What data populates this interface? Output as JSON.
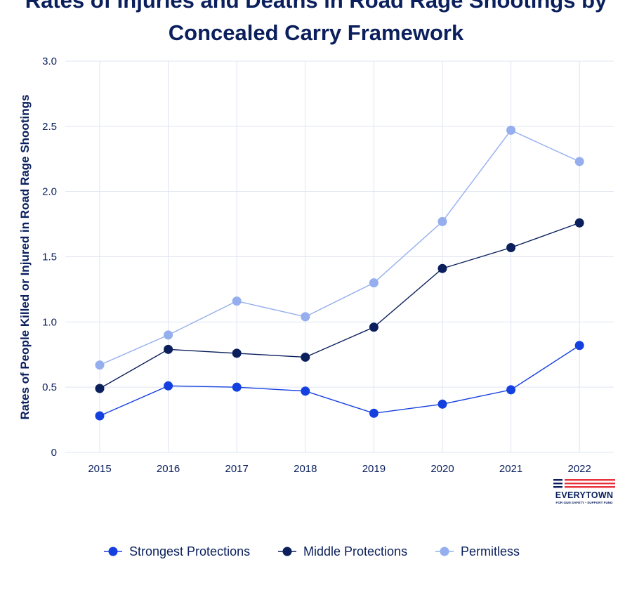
{
  "chart_data": {
    "type": "line",
    "title": "Rates of Injuries and Deaths in Road Rage Shootings by Concealed Carry Framework",
    "xlabel": "",
    "ylabel": "Rates of People Killed or Injured in Road Rage Shootings",
    "categories": [
      "2015",
      "2016",
      "2017",
      "2018",
      "2019",
      "2020",
      "2021",
      "2022"
    ],
    "ylim": [
      0,
      3.0
    ],
    "yticks": [
      0,
      0.5,
      1.0,
      1.5,
      2.0,
      2.5,
      3.0
    ],
    "ytick_labels": [
      "0",
      "0.5",
      "1.0",
      "1.5",
      "2.0",
      "2.5",
      "3.0"
    ],
    "grid": true,
    "legend_position": "bottom-center",
    "series": [
      {
        "name": "Strongest Protections",
        "color": "#1540e0",
        "values": [
          0.28,
          0.51,
          0.5,
          0.47,
          0.3,
          0.37,
          0.48,
          0.82
        ]
      },
      {
        "name": "Middle Protections",
        "color": "#0a1f5c",
        "values": [
          0.49,
          0.79,
          0.76,
          0.73,
          0.96,
          1.41,
          1.57,
          1.76
        ]
      },
      {
        "name": "Permitless",
        "color": "#94aeee",
        "values": [
          0.67,
          0.9,
          1.16,
          1.04,
          1.3,
          1.77,
          2.47,
          2.23
        ]
      }
    ]
  },
  "logo": {
    "wordmark": "EVERYTOWN",
    "tagline": "FOR GUN SAFETY • SUPPORT FUND",
    "colors": {
      "navy": "#0a1f5c",
      "red": "#e8323c"
    }
  }
}
